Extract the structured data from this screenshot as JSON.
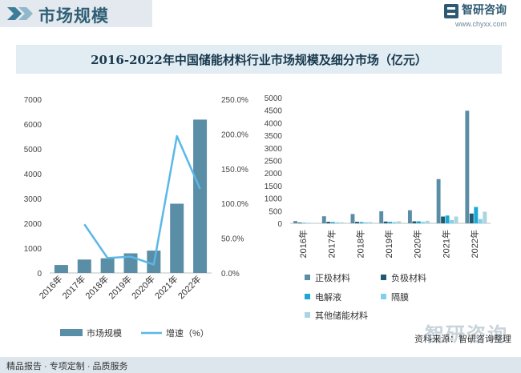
{
  "header": {
    "title": "市场规模",
    "logo_name": "智研咨询",
    "logo_url": "www.chyxx.com"
  },
  "title": "2016-2022年中国储能材料行业市场规模及细分市场（亿元）",
  "chart_data": [
    {
      "type": "bar",
      "categories": [
        "2016年",
        "2017年",
        "2018年",
        "2019年",
        "2020年",
        "2021年",
        "2022年"
      ],
      "series": [
        {
          "name": "市场规模",
          "type": "bar",
          "axis": "left",
          "values": [
            320,
            540,
            590,
            790,
            900,
            2790,
            6180
          ],
          "color": "#5a8da6"
        },
        {
          "name": "增速（%）",
          "type": "line",
          "axis": "right",
          "values": [
            null,
            70.0,
            21.5,
            23.5,
            12.0,
            197.0,
            121.0
          ],
          "color": "#5ab8e8"
        }
      ],
      "yleft_ticks": [
        "0",
        "1000",
        "2000",
        "3000",
        "4000",
        "5000",
        "6000",
        "7000"
      ],
      "yleft_lim": [
        0,
        7000
      ],
      "yright_ticks": [
        "0.0%",
        "50.0%",
        "100.0%",
        "150.0%",
        "200.0%",
        "250.0%"
      ],
      "yright_lim": [
        0,
        250
      ],
      "legend": "bottom"
    },
    {
      "type": "bar",
      "categories": [
        "2016年",
        "2017年",
        "2018年",
        "2019年",
        "2020年",
        "2021年",
        "2022年"
      ],
      "series": [
        {
          "name": "正极材料",
          "values": [
            90,
            280,
            370,
            480,
            520,
            1760,
            4480
          ],
          "color": "#5a8da6"
        },
        {
          "name": "负极材料",
          "values": [
            30,
            60,
            60,
            70,
            80,
            270,
            390
          ],
          "color": "#1f5a70"
        },
        {
          "name": "电解液",
          "values": [
            20,
            50,
            50,
            60,
            80,
            310,
            650
          ],
          "color": "#1aa9d6"
        },
        {
          "name": "隔膜",
          "values": [
            20,
            40,
            40,
            50,
            60,
            130,
            170
          ],
          "color": "#7fd0ee"
        },
        {
          "name": "其他储能材料",
          "values": [
            10,
            40,
            50,
            80,
            100,
            270,
            460
          ],
          "color": "#a9d6de"
        }
      ],
      "ylim": [
        0,
        5000
      ],
      "y_ticks": [
        "0",
        "500",
        "1000",
        "1500",
        "2000",
        "2500",
        "3000",
        "3500",
        "4000",
        "4500",
        "5000"
      ],
      "legend": "bottom"
    }
  ],
  "footer": {
    "left": "精品报告 · 专项定制 · 品质服务",
    "source": "资料来源：智研咨询整理",
    "watermark": "智研咨询"
  }
}
